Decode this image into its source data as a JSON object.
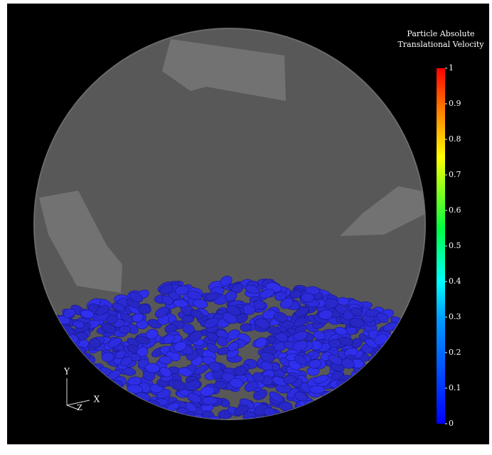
{
  "colorbar": {
    "title": [
      "Particle Absolute",
      "Translational Velocity"
    ],
    "range": [
      0,
      1
    ],
    "ticks": [
      0,
      0.1,
      0.2,
      0.3,
      0.4,
      0.5,
      0.6,
      0.7,
      0.8,
      0.9,
      1
    ]
  },
  "axes": {
    "y": "Y",
    "x": "X",
    "z": "Z"
  }
}
